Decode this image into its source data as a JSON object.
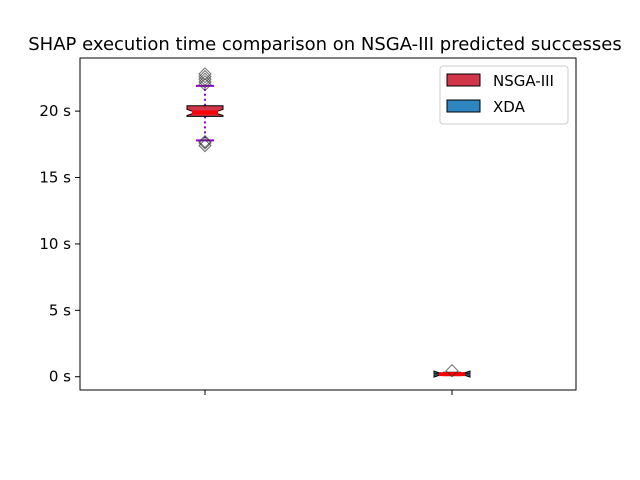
{
  "chart_data": {
    "type": "box",
    "title": "SHAP execution time comparison on NSGA-III predicted successes",
    "xlabel": "",
    "ylabel": "",
    "ylim": [
      -1.0,
      24.0
    ],
    "yticks": [
      0,
      5,
      10,
      15,
      20
    ],
    "ytick_labels": [
      "0 s",
      "5 s",
      "10 s",
      "15 s",
      "20 s"
    ],
    "xticks": [
      "",
      ""
    ],
    "grid": false,
    "legend_position": "top-right",
    "series": [
      {
        "name": "NSGA-III",
        "color": "#d1364a",
        "whisker_color": "#9400d3",
        "cap_color": "#9400d3",
        "median_color": "#ff0000",
        "box": {
          "q1": 19.6,
          "median": 19.9,
          "q3": 20.4
        },
        "whiskers": {
          "low": 17.8,
          "high": 21.9
        },
        "outliers_high": [
          22.0,
          22.2,
          22.4,
          22.6,
          22.8
        ],
        "outliers_low": [
          17.4,
          17.6,
          17.7
        ]
      },
      {
        "name": "XDA",
        "color": "#2e86c1",
        "whisker_color": "#000000",
        "cap_color": "#000000",
        "median_color": "#ff0000",
        "box": {
          "q1": 0.15,
          "median": 0.2,
          "q3": 0.25
        },
        "whiskers": {
          "low": 0.12,
          "high": 0.3
        },
        "outliers_high": [
          0.45
        ],
        "outliers_low": []
      }
    ]
  }
}
